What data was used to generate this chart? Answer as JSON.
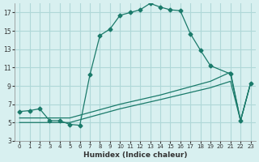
{
  "xlabel": "Humidex (Indice chaleur)",
  "ylabel": "",
  "bg_color": "#d8f0f0",
  "grid_color": "#b0d8d8",
  "line_color": "#1a7a6a",
  "xlim": [
    -0.5,
    23.5
  ],
  "ylim": [
    3,
    18
  ],
  "xticks": [
    0,
    1,
    2,
    3,
    4,
    5,
    6,
    7,
    8,
    9,
    10,
    11,
    12,
    13,
    14,
    15,
    16,
    17,
    18,
    19,
    20,
    21,
    22,
    23
  ],
  "yticks": [
    3,
    5,
    7,
    9,
    11,
    13,
    15,
    17
  ],
  "curve1_x": [
    0,
    1,
    2,
    3,
    4,
    5,
    6,
    7,
    8,
    9,
    10,
    11,
    12,
    13,
    14,
    15,
    16,
    17,
    18,
    19,
    21,
    22,
    23
  ],
  "curve1_y": [
    6.2,
    6.3,
    6.5,
    5.2,
    5.2,
    4.8,
    4.7,
    10.2,
    14.5,
    15.2,
    16.7,
    17.0,
    17.3,
    18.0,
    17.6,
    17.3,
    17.2,
    14.7,
    12.9,
    11.2,
    10.3,
    5.2,
    9.3
  ],
  "curve2_x": [
    0,
    5,
    10,
    14,
    19,
    21,
    22,
    23
  ],
  "curve2_y": [
    5.0,
    5.0,
    6.5,
    7.5,
    8.8,
    9.5,
    5.2,
    9.3
  ],
  "curve3_x": [
    0,
    5,
    10,
    14,
    19,
    21,
    22,
    23
  ],
  "curve3_y": [
    5.5,
    5.5,
    7.0,
    8.0,
    9.5,
    10.5,
    5.2,
    9.3
  ]
}
